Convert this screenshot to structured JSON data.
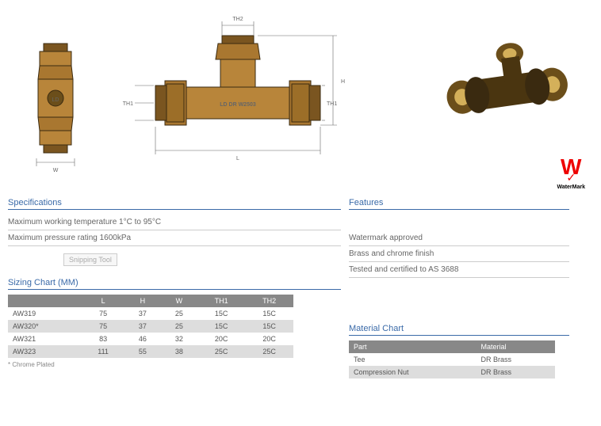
{
  "diagrams": {
    "end_view": {
      "body_color": "#a97730",
      "outline": "#3a2a10",
      "width_label": "W"
    },
    "side_view": {
      "body_color": "#a97730",
      "outline": "#3a2a10",
      "inscription": "LD DR  W2503",
      "labels": {
        "L": "L",
        "H": "H",
        "TH1_left": "TH1",
        "TH1_right": "TH1",
        "TH2": "TH2"
      }
    },
    "photo": {
      "body_color": "#8a6a2a",
      "dark": "#3a2a10",
      "light": "#d4b05a"
    }
  },
  "watermark": {
    "big_w": "W",
    "tick": "✓",
    "label": "WaterMark"
  },
  "overlay": {
    "text": "Snipping Tool"
  },
  "specifications": {
    "title": "Specifications",
    "lines": [
      "Maximum working temperature 1°C to 95°C",
      "Maximum pressure rating 1600kPa"
    ]
  },
  "features": {
    "title": "Features",
    "lines": [
      "Watermark approved",
      "Brass and chrome finish",
      "Tested and certified to AS 3688"
    ]
  },
  "sizing_chart": {
    "title": "Sizing Chart (MM)",
    "headers": [
      "",
      "L",
      "H",
      "W",
      "TH1",
      "TH2"
    ],
    "rows": [
      {
        "model": "AW319",
        "L": "75",
        "H": "37",
        "W": "25",
        "TH1": "15C",
        "TH2": "15C",
        "alt": false
      },
      {
        "model": "AW320*",
        "L": "75",
        "H": "37",
        "W": "25",
        "TH1": "15C",
        "TH2": "15C",
        "alt": true
      },
      {
        "model": "AW321",
        "L": "83",
        "H": "46",
        "W": "32",
        "TH1": "20C",
        "TH2": "20C",
        "alt": false
      },
      {
        "model": "AW323",
        "L": "111",
        "H": "55",
        "W": "38",
        "TH1": "25C",
        "TH2": "25C",
        "alt": true
      }
    ],
    "footnote": "* Chrome Plated"
  },
  "material_chart": {
    "title": "Material Chart",
    "headers": [
      "Part",
      "Material"
    ],
    "rows": [
      {
        "part": "Tee",
        "material": "DR Brass",
        "alt": false
      },
      {
        "part": "Compression Nut",
        "material": "DR Brass",
        "alt": true
      }
    ]
  },
  "styling": {
    "title_color": "#3a6aa8",
    "header_bg": "#888888",
    "alt_row_bg": "#dddddd",
    "rule_color": "#cccccc",
    "watermark_red": "#ee0000"
  }
}
